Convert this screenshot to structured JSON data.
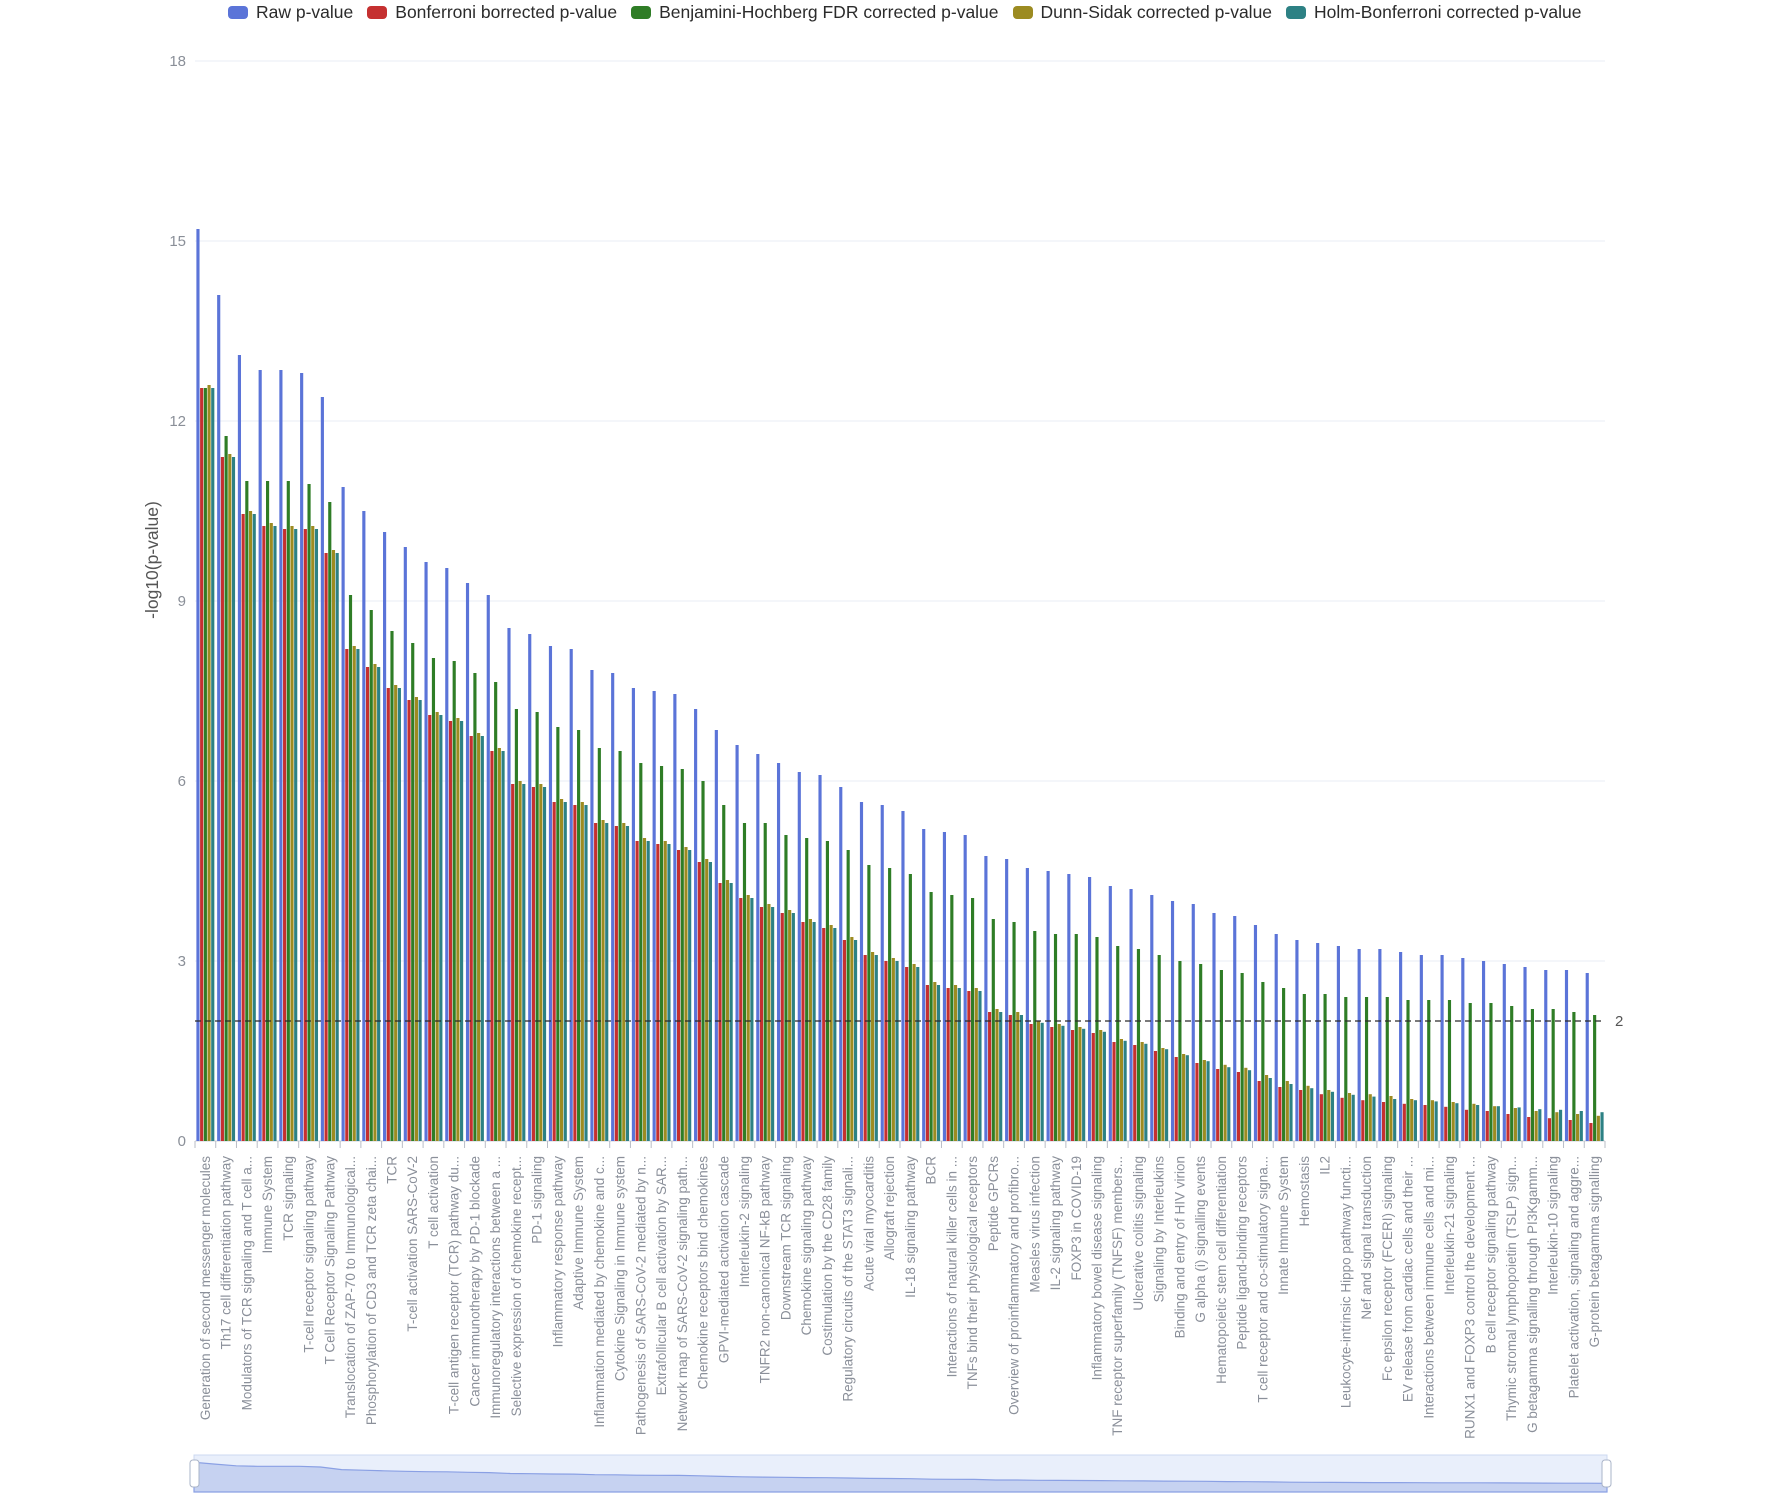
{
  "chart_data": {
    "type": "bar",
    "title": "",
    "xlabel": "",
    "ylabel": "-log10(p-value)",
    "ylim": [
      0,
      18
    ],
    "yticks": [
      0,
      3,
      6,
      9,
      12,
      15,
      18
    ],
    "grid": "horizontal",
    "legend_position": "top",
    "threshold": {
      "value": 2,
      "label": "2"
    },
    "navigator": {
      "present": true
    },
    "categories": [
      "Generation of second messenger molecules",
      "Th17 cell differentiation pathway",
      "Modulators of TCR signaling and T cell a...",
      "Immune System",
      "TCR signaling",
      "T-cell receptor signaling pathway",
      "T Cell Receptor Signaling Pathway",
      "Translocation of ZAP-70 to Immunological...",
      "Phosphorylation of CD3 and TCR zeta chai...",
      "TCR",
      "T-cell activation SARS-CoV-2",
      "T cell activation",
      "T-cell antigen receptor (TCR) pathway du...",
      "Cancer immunotherapy by PD-1 blockade",
      "Immunoregulatory interactions between a ...",
      "Selective expression of chemokine recept...",
      "PD-1 signaling",
      "Inflammatory response pathway",
      "Adaptive Immune System",
      "Inflammation mediated by chemokine and c...",
      "Cytokine Signaling in Immune system",
      "Pathogenesis of SARS-CoV-2 mediated by n...",
      "Extrafollicular B cell activation by SAR...",
      "Network map of SARS-CoV-2 signaling path...",
      "Chemokine receptors bind chemokines",
      "GPVI-mediated activation cascade",
      "Interleukin-2 signaling",
      "TNFR2 non-canonical NF-kB pathway",
      "Downstream TCR signaling",
      "Chemokine signaling pathway",
      "Costimulation by the CD28 family",
      "Regulatory circuits of the STAT3 signali...",
      "Acute viral myocarditis",
      "Allograft rejection",
      "IL-18 signaling pathway",
      "BCR",
      "Interactions of natural killer cells in ...",
      "TNFs bind their physiological receptors",
      "Peptide GPCRs",
      "Overview of proinflammatory and profibro...",
      "Measles virus infection",
      "IL-2 signaling pathway",
      "FOXP3 in COVID-19",
      "Inflammatory bowel disease signaling",
      "TNF receptor superfamily (TNFSF) members...",
      "Ulcerative colitis signaling",
      "Signaling by Interleukins",
      "Binding and entry of HIV virion",
      "G alpha (i) signalling events",
      "Hematopoietic stem cell differentiation",
      "Peptide ligand-binding receptors",
      "T cell receptor and co-stimulatory signa...",
      "Innate Immune System",
      "Hemostasis",
      "IL2",
      "Leukocyte-intrinsic Hippo pathway functi...",
      "Nef and signal transduction",
      "Fc epsilon receptor (FCERI) signaling",
      "EV release from cardiac cells and their ...",
      "Interactions between immune cells and mi...",
      "Interleukin-21 signaling",
      "RUNX1 and FOXP3 control the development ...",
      "B cell receptor signaling pathway",
      "Thymic stromal lymphopoietin (TSLP) sign...",
      "G betagamma signalling through PI3Kgamm...",
      "Interleukin-10 signaling",
      "Platelet activation, signaling and aggre...",
      "G-protein betagamma signalling"
    ],
    "series": [
      {
        "name": "Raw p-value",
        "color": "#5b74d8",
        "values": [
          15.2,
          14.1,
          13.1,
          12.85,
          12.85,
          12.8,
          12.4,
          10.9,
          10.5,
          10.15,
          9.9,
          9.65,
          9.55,
          9.3,
          9.1,
          8.55,
          8.45,
          8.25,
          8.2,
          7.85,
          7.8,
          7.55,
          7.5,
          7.45,
          7.2,
          6.85,
          6.6,
          6.45,
          6.3,
          6.15,
          6.1,
          5.9,
          5.65,
          5.6,
          5.5,
          5.2,
          5.15,
          5.1,
          4.75,
          4.7,
          4.55,
          4.5,
          4.45,
          4.4,
          4.25,
          4.2,
          4.1,
          4.0,
          3.95,
          3.8,
          3.75,
          3.6,
          3.45,
          3.35,
          3.3,
          3.25,
          3.2,
          3.2,
          3.15,
          3.1,
          3.1,
          3.05,
          3.0,
          2.95,
          2.9,
          2.85,
          2.85,
          2.8
        ]
      },
      {
        "name": "Bonferroni borrected p-value",
        "color": "#c53030",
        "values": [
          12.55,
          11.4,
          10.45,
          10.25,
          10.2,
          10.2,
          9.8,
          8.2,
          7.9,
          7.55,
          7.35,
          7.1,
          7.0,
          6.75,
          6.5,
          5.95,
          5.9,
          5.65,
          5.6,
          5.3,
          5.25,
          5.0,
          4.95,
          4.85,
          4.65,
          4.3,
          4.05,
          3.9,
          3.8,
          3.65,
          3.55,
          3.35,
          3.1,
          3.0,
          2.9,
          2.6,
          2.55,
          2.5,
          2.15,
          2.1,
          1.95,
          1.9,
          1.85,
          1.8,
          1.65,
          1.6,
          1.5,
          1.4,
          1.3,
          1.2,
          1.15,
          1.0,
          0.9,
          0.85,
          0.78,
          0.72,
          0.68,
          0.65,
          0.62,
          0.6,
          0.57,
          0.52,
          0.5,
          0.45,
          0.4,
          0.38,
          0.35,
          0.3
        ]
      },
      {
        "name": "Benjamini-Hochberg FDR corrected p-value",
        "color": "#2f7d26",
        "values": [
          12.55,
          11.75,
          11.0,
          11.0,
          11.0,
          10.95,
          10.65,
          9.1,
          8.85,
          8.5,
          8.3,
          8.05,
          8.0,
          7.8,
          7.65,
          7.2,
          7.15,
          6.9,
          6.85,
          6.55,
          6.5,
          6.3,
          6.25,
          6.2,
          6.0,
          5.6,
          5.3,
          5.3,
          5.1,
          5.05,
          5.0,
          4.85,
          4.6,
          4.55,
          4.45,
          4.15,
          4.1,
          4.05,
          3.7,
          3.65,
          3.5,
          3.45,
          3.45,
          3.4,
          3.25,
          3.2,
          3.1,
          3.0,
          2.95,
          2.85,
          2.8,
          2.65,
          2.55,
          2.45,
          2.45,
          2.4,
          2.4,
          2.4,
          2.35,
          2.35,
          2.35,
          2.3,
          2.3,
          2.25,
          2.2,
          2.2,
          2.15,
          2.1
        ]
      },
      {
        "name": "Dunn-Sidak corrected p-value",
        "color": "#9c8b21",
        "values": [
          12.6,
          11.45,
          10.5,
          10.3,
          10.25,
          10.25,
          9.85,
          8.25,
          7.95,
          7.6,
          7.4,
          7.15,
          7.05,
          6.8,
          6.55,
          6.0,
          5.95,
          5.7,
          5.65,
          5.35,
          5.3,
          5.05,
          5.0,
          4.9,
          4.7,
          4.35,
          4.1,
          3.95,
          3.85,
          3.7,
          3.6,
          3.4,
          3.15,
          3.05,
          2.95,
          2.65,
          2.6,
          2.55,
          2.2,
          2.15,
          2.0,
          1.95,
          1.9,
          1.85,
          1.7,
          1.65,
          1.55,
          1.45,
          1.35,
          1.27,
          1.22,
          1.1,
          1.0,
          0.92,
          0.85,
          0.8,
          0.78,
          0.75,
          0.7,
          0.68,
          0.65,
          0.62,
          0.58,
          0.55,
          0.5,
          0.48,
          0.45,
          0.42
        ]
      },
      {
        "name": "Holm-Bonferroni corrected p-value",
        "color": "#2d8184",
        "values": [
          12.55,
          11.4,
          10.45,
          10.25,
          10.2,
          10.2,
          9.8,
          8.2,
          7.9,
          7.55,
          7.35,
          7.1,
          7.0,
          6.75,
          6.5,
          5.95,
          5.9,
          5.65,
          5.6,
          5.3,
          5.25,
          5.0,
          4.95,
          4.85,
          4.65,
          4.3,
          4.05,
          3.9,
          3.8,
          3.65,
          3.55,
          3.35,
          3.1,
          3.0,
          2.9,
          2.6,
          2.55,
          2.5,
          2.15,
          2.1,
          1.97,
          1.92,
          1.87,
          1.82,
          1.67,
          1.62,
          1.53,
          1.43,
          1.33,
          1.23,
          1.18,
          1.05,
          0.95,
          0.88,
          0.82,
          0.77,
          0.74,
          0.7,
          0.68,
          0.66,
          0.63,
          0.6,
          0.58,
          0.56,
          0.53,
          0.52,
          0.5,
          0.48
        ]
      }
    ]
  }
}
